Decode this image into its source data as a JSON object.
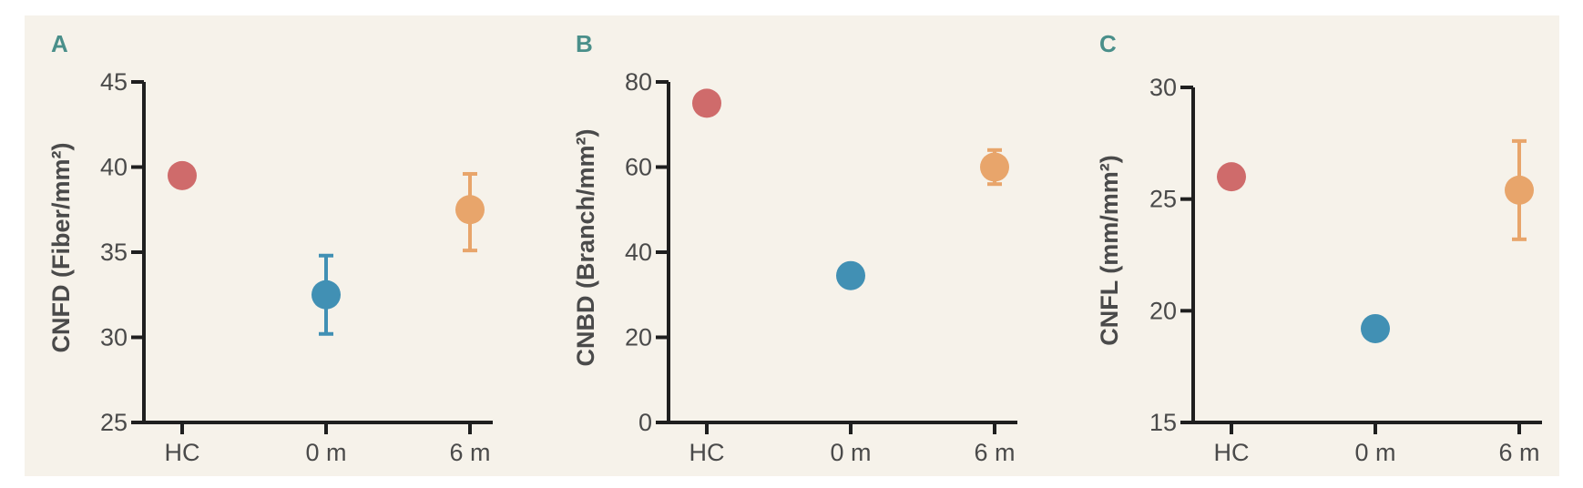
{
  "colors": {
    "hc": "#cf6b6b",
    "m0": "#4190b4",
    "m6": "#e8a56b",
    "axis": "#1f1f1f",
    "panel_label": "#4a8f8a"
  },
  "chart_data": [
    {
      "type": "scatter",
      "panel_label": "A",
      "ylabel": "CNFD (Fiber/mm²)",
      "categories": [
        "HC",
        "0 m",
        "6 m"
      ],
      "ylim": [
        25,
        45
      ],
      "yticks": [
        "25",
        "30",
        "35",
        "40",
        "45"
      ],
      "points": [
        {
          "category": "HC",
          "value": 39.5,
          "err_low": 39.5,
          "err_high": 39.5,
          "color": "hc"
        },
        {
          "category": "0 m",
          "value": 32.5,
          "err_low": 30.2,
          "err_high": 34.8,
          "color": "m0"
        },
        {
          "category": "6 m",
          "value": 37.5,
          "err_low": 35.1,
          "err_high": 39.6,
          "color": "m6"
        }
      ]
    },
    {
      "type": "scatter",
      "panel_label": "B",
      "ylabel": "CNBD (Branch/mm²)",
      "categories": [
        "HC",
        "0 m",
        "6 m"
      ],
      "ylim": [
        0,
        80
      ],
      "yticks": [
        "0",
        "20",
        "40",
        "60",
        "80"
      ],
      "points": [
        {
          "category": "HC",
          "value": 75,
          "err_low": 75,
          "err_high": 75,
          "color": "hc"
        },
        {
          "category": "0 m",
          "value": 34.5,
          "err_low": 33,
          "err_high": 36,
          "color": "m0"
        },
        {
          "category": "6 m",
          "value": 60,
          "err_low": 56,
          "err_high": 64,
          "color": "m6"
        }
      ]
    },
    {
      "type": "scatter",
      "panel_label": "C",
      "ylabel": "CNFL (mm/mm²)",
      "categories": [
        "HC",
        "0 m",
        "6 m"
      ],
      "ylim": [
        15,
        30
      ],
      "yticks": [
        "15",
        "20",
        "25",
        "30"
      ],
      "points": [
        {
          "category": "HC",
          "value": 26,
          "err_low": 26,
          "err_high": 26,
          "color": "hc"
        },
        {
          "category": "0 m",
          "value": 19.2,
          "err_low": 18.9,
          "err_high": 19.5,
          "color": "m0"
        },
        {
          "category": "6 m",
          "value": 25.4,
          "err_low": 23.2,
          "err_high": 27.6,
          "color": "m6"
        }
      ]
    }
  ]
}
